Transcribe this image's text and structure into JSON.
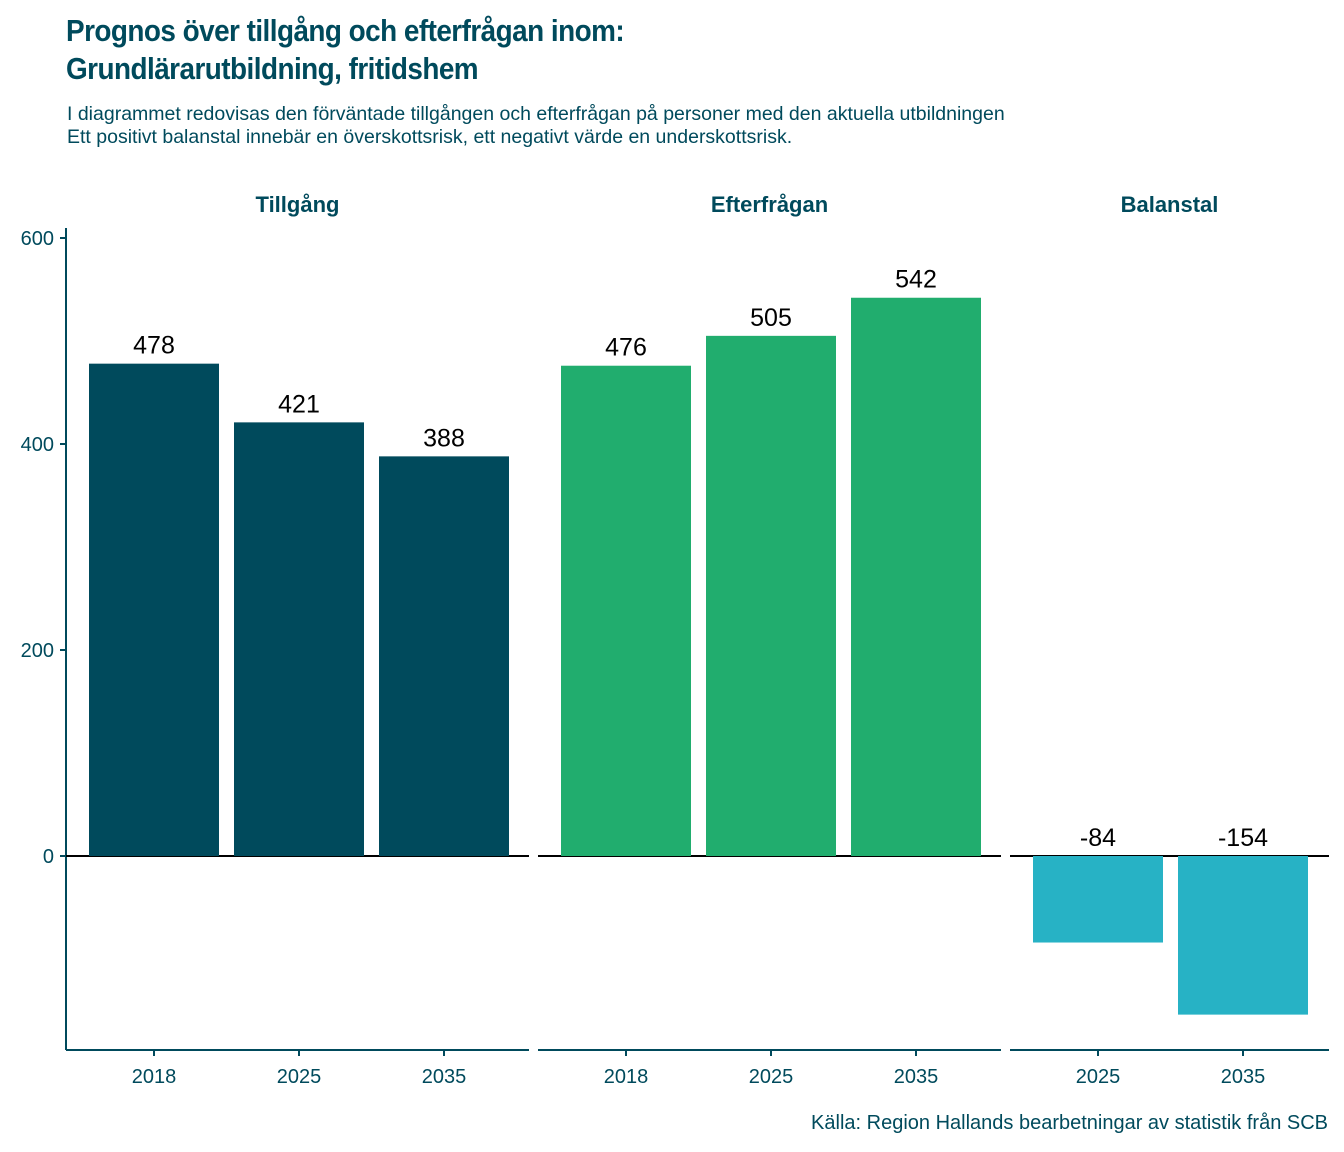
{
  "chart_data": {
    "type": "bar",
    "title": "Prognos över tillgång och efterfrågan inom:\nGrundlärarutbildning, fritidshem",
    "title_lines": [
      "Prognos över tillgång och efterfrågan inom:",
      "Grundlärarutbildning, fritidshem"
    ],
    "subtitle_lines": [
      "I diagrammet redovisas den förväntade tillgången och efterfrågan på personer med den aktuella utbildningen",
      "Ett positivt balanstal innebär en överskottsrisk, ett negativt värde en underskottsrisk."
    ],
    "caption": "Källa: Region Hallands bearbetningar av statistik från SCB",
    "xlabel": "",
    "ylabel": "",
    "ylim": [
      -190,
      610
    ],
    "yticks": [
      0,
      200,
      400,
      600
    ],
    "grid": false,
    "legend": "none",
    "facets": [
      {
        "name": "Tillgång",
        "color": "#004a5c",
        "categories": [
          "2018",
          "2025",
          "2035"
        ],
        "values": [
          478,
          421,
          388
        ]
      },
      {
        "name": "Efterfrågan",
        "color": "#21ad6e",
        "categories": [
          "2018",
          "2025",
          "2035"
        ],
        "values": [
          476,
          505,
          542
        ]
      },
      {
        "name": "Balanstal",
        "color": "#27b2c5",
        "categories": [
          "2025",
          "2035"
        ],
        "values": [
          -84,
          -154
        ]
      }
    ]
  },
  "colors": {
    "text": "#004a5c",
    "zero_line": "#000000",
    "axis": "#004a5c"
  }
}
